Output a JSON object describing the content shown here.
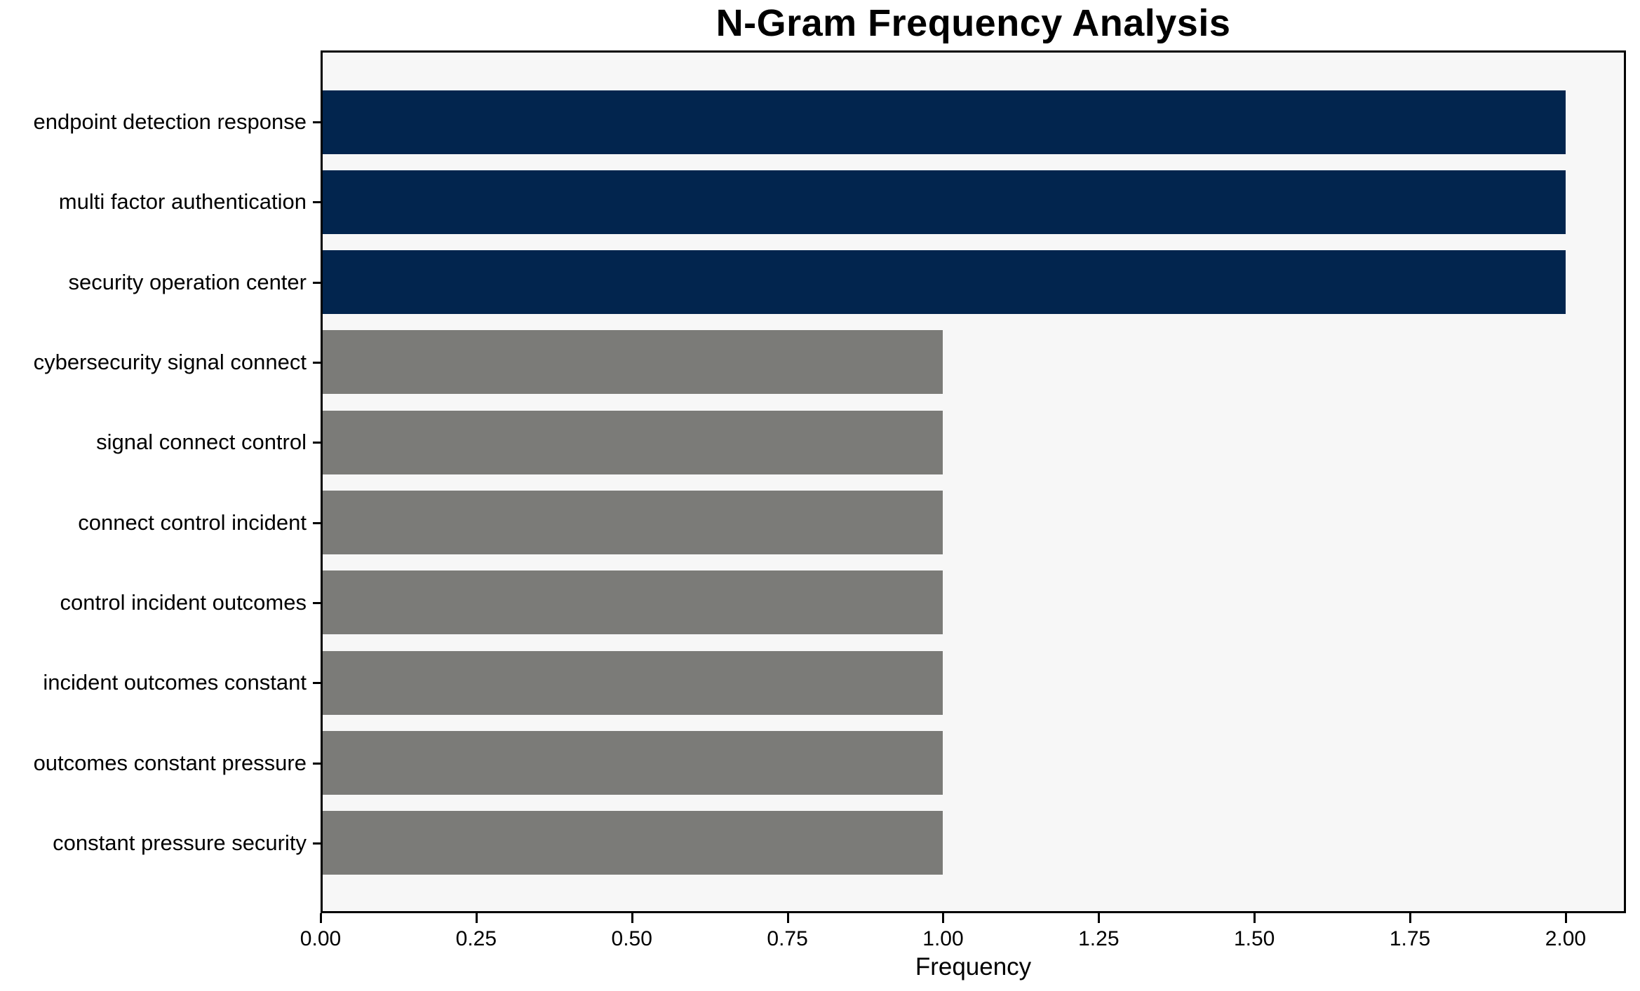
{
  "chart_data": {
    "type": "bar",
    "orientation": "horizontal",
    "title": "N-Gram Frequency Analysis",
    "xlabel": "Frequency",
    "ylabel": "",
    "categories": [
      "endpoint detection response",
      "multi factor authentication",
      "security operation center",
      "cybersecurity signal connect",
      "signal connect control",
      "connect control incident",
      "control incident outcomes",
      "incident outcomes constant",
      "outcomes constant pressure",
      "constant pressure security"
    ],
    "values": [
      2,
      2,
      2,
      1,
      1,
      1,
      1,
      1,
      1,
      1
    ],
    "bar_colors": [
      "#02254e",
      "#02254e",
      "#02254e",
      "#7b7b78",
      "#7b7b78",
      "#7b7b78",
      "#7b7b78",
      "#7b7b78",
      "#7b7b78",
      "#7b7b78"
    ],
    "xticks": [
      0,
      0.25,
      0.5,
      0.75,
      1,
      1.25,
      1.5,
      1.75,
      2
    ],
    "xtick_labels": [
      "0.00",
      "0.25",
      "0.50",
      "0.75",
      "1.00",
      "1.25",
      "1.50",
      "1.75",
      "2.00"
    ],
    "xlim": [
      0,
      2.097
    ],
    "grid": false,
    "legend_position": "none",
    "plot_background": "#f7f7f7",
    "figure_background": "#ffffff",
    "accent_color_high": "#02254e",
    "accent_color_low": "#7b7b78"
  }
}
